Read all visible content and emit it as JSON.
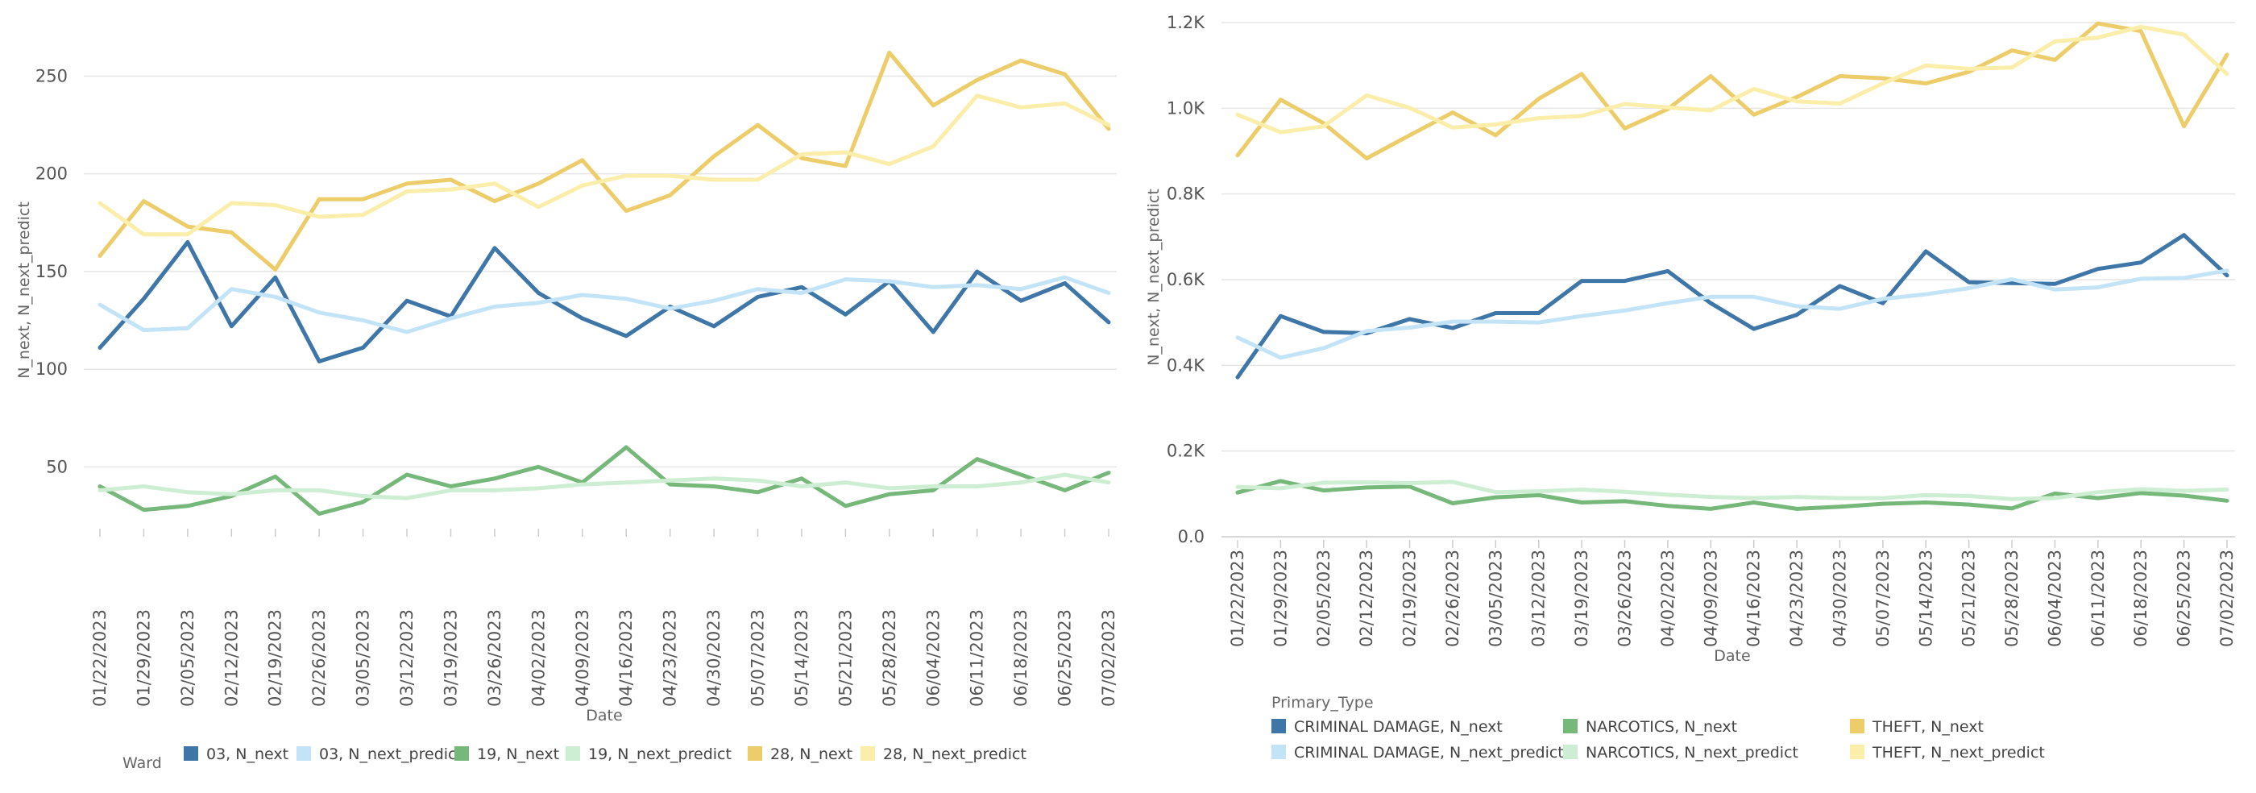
{
  "chart_data": [
    {
      "type": "line",
      "xlabel": "Date",
      "ylabel": "N_next, N_next_predict",
      "legend_title": "Ward",
      "legend_position": "bottom",
      "ylim": [
        20,
        270
      ],
      "yticks": [
        50,
        100,
        150,
        200,
        250
      ],
      "ytick_labels": [
        "50",
        "100",
        "150",
        "200",
        "250"
      ],
      "grid": true,
      "x": [
        "01/22/2023",
        "01/29/2023",
        "02/05/2023",
        "02/12/2023",
        "02/19/2023",
        "02/26/2023",
        "03/05/2023",
        "03/12/2023",
        "03/19/2023",
        "03/26/2023",
        "04/02/2023",
        "04/09/2023",
        "04/16/2023",
        "04/23/2023",
        "04/30/2023",
        "05/07/2023",
        "05/14/2023",
        "05/21/2023",
        "05/28/2023",
        "06/04/2023",
        "06/11/2023",
        "06/18/2023",
        "06/25/2023",
        "07/02/2023"
      ],
      "series": [
        {
          "name": "03, N_next",
          "color": "#3f76a8",
          "values": [
            111,
            136,
            165,
            122,
            147,
            104,
            111,
            135,
            127,
            162,
            139,
            126,
            117,
            132,
            122,
            137,
            142,
            128,
            145,
            119,
            150,
            135,
            144,
            124
          ]
        },
        {
          "name": "03, N_next_predict",
          "color": "#c3e4f7",
          "values": [
            133,
            120,
            121,
            141,
            137,
            129,
            125,
            119,
            126,
            132,
            134,
            138,
            136,
            131,
            135,
            141,
            139,
            146,
            145,
            142,
            143,
            141,
            147,
            139
          ]
        },
        {
          "name": "19, N_next",
          "color": "#75b87a",
          "values": [
            40,
            28,
            30,
            35,
            45,
            26,
            32,
            46,
            40,
            44,
            50,
            42,
            60,
            41,
            40,
            37,
            44,
            30,
            36,
            38,
            54,
            46,
            38,
            47
          ]
        },
        {
          "name": "19, N_next_predict",
          "color": "#cdeed3",
          "values": [
            38,
            40,
            37,
            36,
            38,
            38,
            35,
            34,
            38,
            38,
            39,
            41,
            42,
            43,
            44,
            43,
            40,
            42,
            39,
            40,
            40,
            42,
            46,
            42
          ]
        },
        {
          "name": "28, N_next",
          "color": "#eccd6a",
          "values": [
            158,
            186,
            173,
            170,
            151,
            187,
            187,
            195,
            197,
            186,
            195,
            207,
            181,
            189,
            209,
            225,
            208,
            204,
            262,
            235,
            248,
            258,
            251,
            223
          ]
        },
        {
          "name": "28, N_next_predict",
          "color": "#faeeaa",
          "values": [
            185,
            169,
            169,
            185,
            184,
            178,
            179,
            191,
            192,
            195,
            183,
            194,
            199,
            199,
            197,
            197,
            210,
            211,
            205,
            214,
            240,
            234,
            236,
            225
          ]
        }
      ]
    },
    {
      "type": "line",
      "xlabel": "Date",
      "ylabel": "N_next, N_next_predict",
      "legend_title": "Primary_Type",
      "legend_position": "bottom",
      "ylim": [
        0,
        1200
      ],
      "yticks": [
        0,
        200,
        400,
        600,
        800,
        1000,
        1200
      ],
      "ytick_labels": [
        "0.0",
        "0.2K",
        "0.4K",
        "0.6K",
        "0.8K",
        "1.0K",
        "1.2K"
      ],
      "grid": true,
      "x": [
        "01/22/2023",
        "01/29/2023",
        "02/05/2023",
        "02/12/2023",
        "02/19/2023",
        "02/26/2023",
        "03/05/2023",
        "03/12/2023",
        "03/19/2023",
        "03/26/2023",
        "04/02/2023",
        "04/09/2023",
        "04/16/2023",
        "04/23/2023",
        "04/30/2023",
        "05/07/2023",
        "05/14/2023",
        "05/21/2023",
        "05/28/2023",
        "06/04/2023",
        "06/11/2023",
        "06/18/2023",
        "06/25/2023",
        "07/02/2023"
      ],
      "series": [
        {
          "name": "CRIMINAL DAMAGE, N_next",
          "color": "#3f76a8",
          "values": [
            372,
            515,
            478,
            475,
            508,
            487,
            522,
            522,
            597,
            597,
            620,
            545,
            485,
            518,
            585,
            545,
            666,
            594,
            592,
            590,
            625,
            640,
            704,
            610
          ]
        },
        {
          "name": "CRIMINAL DAMAGE, N_next_predict",
          "color": "#c3e4f7",
          "values": [
            465,
            418,
            440,
            480,
            488,
            502,
            502,
            500,
            515,
            528,
            545,
            560,
            560,
            538,
            532,
            555,
            566,
            580,
            601,
            577,
            582,
            602,
            604,
            621
          ]
        },
        {
          "name": "NARCOTICS, N_next",
          "color": "#75b87a",
          "values": [
            103,
            130,
            108,
            115,
            117,
            78,
            92,
            97,
            80,
            83,
            72,
            65,
            80,
            65,
            70,
            77,
            80,
            75,
            66,
            101,
            90,
            102,
            96,
            84
          ]
        },
        {
          "name": "NARCOTICS, N_next_predict",
          "color": "#cdeed3",
          "values": [
            116,
            113,
            126,
            127,
            125,
            128,
            104,
            106,
            110,
            105,
            98,
            93,
            90,
            93,
            90,
            90,
            97,
            95,
            88,
            90,
            104,
            111,
            107,
            110
          ]
        },
        {
          "name": "THEFT, N_next",
          "color": "#eccd6a",
          "values": [
            890,
            1020,
            965,
            883,
            937,
            990,
            937,
            1022,
            1080,
            953,
            998,
            1075,
            985,
            1026,
            1075,
            1070,
            1058,
            1085,
            1135,
            1113,
            1198,
            1180,
            958,
            1125
          ]
        },
        {
          "name": "THEFT, N_next_predict",
          "color": "#faeeaa",
          "values": [
            985,
            944,
            958,
            1030,
            1001,
            955,
            962,
            977,
            982,
            1010,
            1002,
            995,
            1045,
            1016,
            1011,
            1058,
            1100,
            1092,
            1095,
            1156,
            1165,
            1190,
            1172,
            1080
          ]
        }
      ]
    }
  ]
}
